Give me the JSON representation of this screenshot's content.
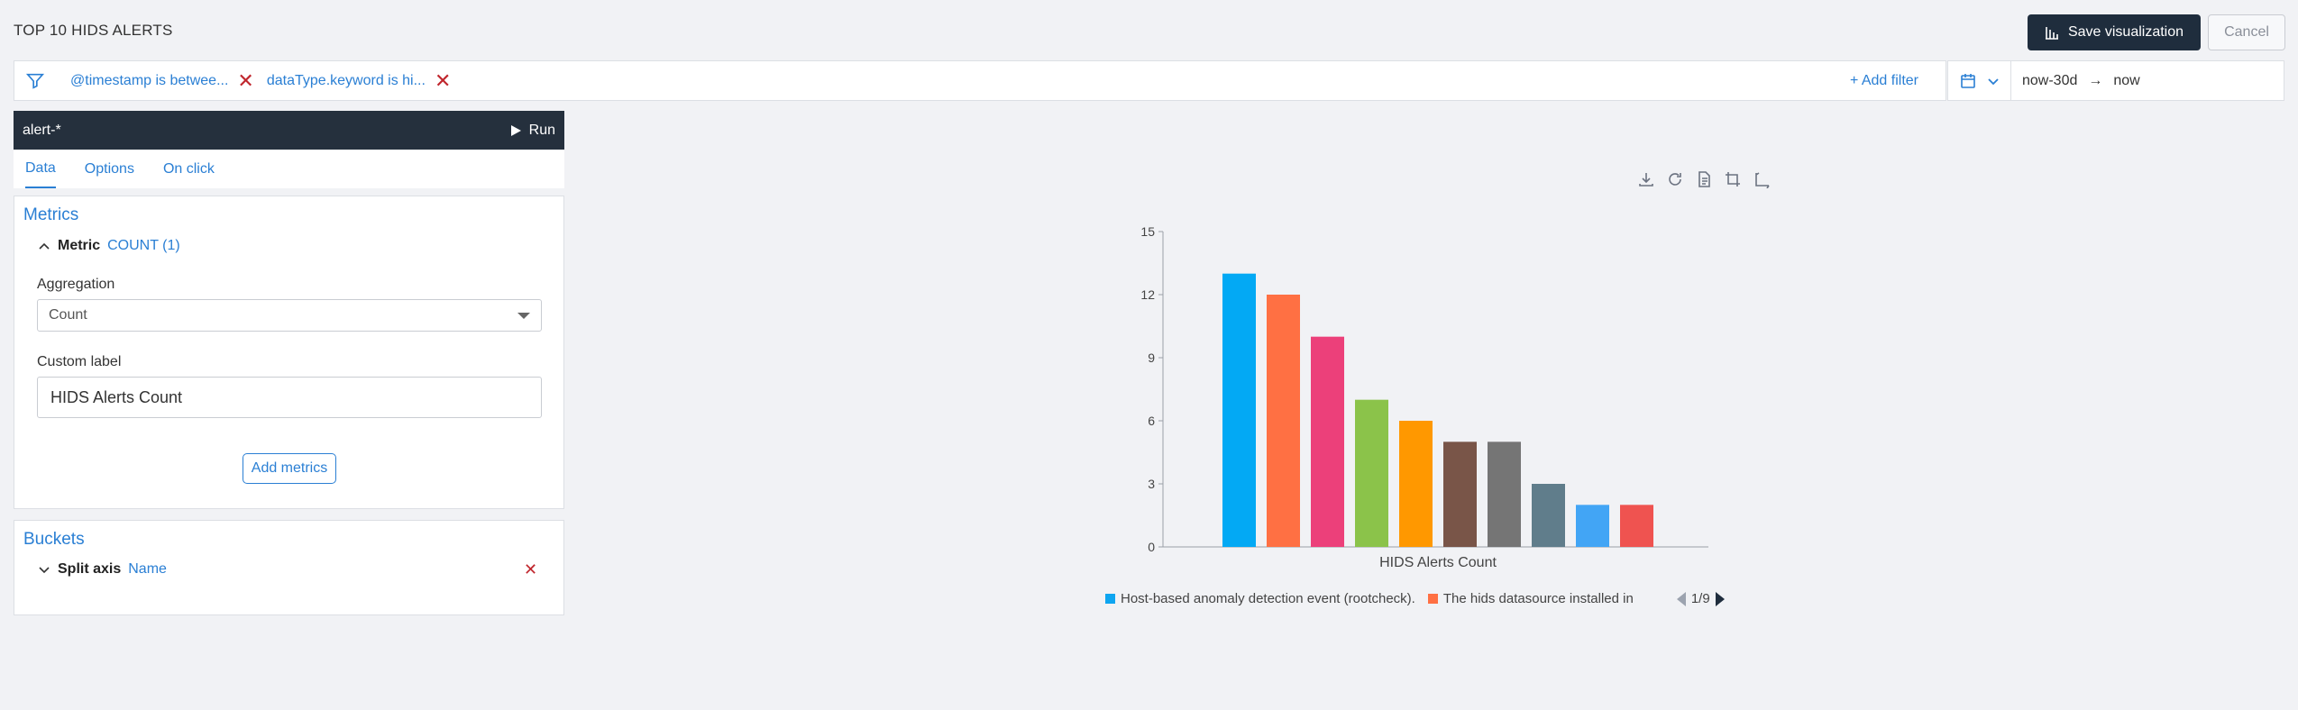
{
  "page": {
    "title": "TOP 10 HIDS ALERTS"
  },
  "header": {
    "save_label": "Save visualization",
    "cancel_label": "Cancel"
  },
  "filters": {
    "pills": [
      {
        "label": "@timestamp is betwee..."
      },
      {
        "label": "dataType.keyword is hi..."
      }
    ],
    "add_filter_label": "+ Add filter"
  },
  "datepicker": {
    "from": "now-30d",
    "arrow": "→",
    "to": "now"
  },
  "editor": {
    "index_pattern": "alert-*",
    "run_label": "Run",
    "tabs": [
      "Data",
      "Options",
      "On click"
    ],
    "metrics": {
      "title": "Metrics",
      "metric_label": "Metric",
      "metric_value": "COUNT (1)",
      "aggregation_label": "Aggregation",
      "aggregation_value": "Count",
      "custom_label_label": "Custom label",
      "custom_label_value": "HIDS Alerts Count",
      "add_metrics_label": "Add metrics"
    },
    "buckets": {
      "title": "Buckets",
      "split_label": "Split axis",
      "split_value": "Name"
    }
  },
  "legend": {
    "items": [
      {
        "label": "Host-based anomaly detection event (rootcheck).",
        "color": "#0ea5f0"
      },
      {
        "label": "The hids datasource installed in",
        "color": "#ff7043"
      }
    ],
    "page": "1/9"
  },
  "chart_data": {
    "type": "bar",
    "xlabel": "HIDS Alerts Count",
    "ylabel": "",
    "ylim": [
      0,
      15
    ],
    "yticks": [
      0,
      3,
      6,
      9,
      12,
      15
    ],
    "values": [
      13,
      12,
      10,
      7,
      6,
      5,
      5,
      3,
      2,
      2
    ],
    "colors": [
      "#03a9f4",
      "#ff7043",
      "#ec407a",
      "#8bc34a",
      "#ff9800",
      "#795548",
      "#757575",
      "#607d8b",
      "#42a5f5",
      "#ef5350"
    ],
    "grid": false
  }
}
